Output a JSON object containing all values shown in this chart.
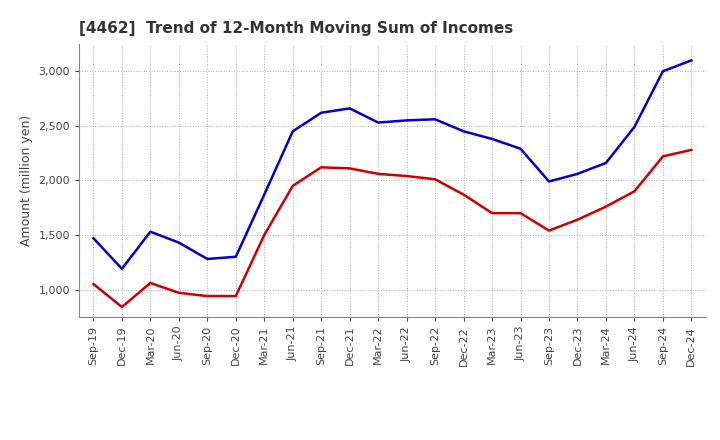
{
  "title": "[4462]  Trend of 12-Month Moving Sum of Incomes",
  "ylabel": "Amount (million yen)",
  "x_labels": [
    "Sep-19",
    "Dec-19",
    "Mar-20",
    "Jun-20",
    "Sep-20",
    "Dec-20",
    "Mar-21",
    "Jun-21",
    "Sep-21",
    "Dec-21",
    "Mar-22",
    "Jun-22",
    "Sep-22",
    "Dec-22",
    "Mar-23",
    "Jun-23",
    "Sep-23",
    "Dec-23",
    "Mar-24",
    "Jun-24",
    "Sep-24",
    "Dec-24"
  ],
  "ordinary_income": [
    1470,
    1190,
    1530,
    1430,
    1280,
    1300,
    1870,
    2450,
    2620,
    2660,
    2530,
    2550,
    2560,
    2450,
    2380,
    2290,
    1990,
    2060,
    2160,
    2490,
    3000,
    3100
  ],
  "net_income": [
    1050,
    840,
    1060,
    970,
    940,
    940,
    1500,
    1950,
    2120,
    2110,
    2060,
    2040,
    2010,
    1870,
    1700,
    1700,
    1540,
    1640,
    1760,
    1900,
    2220,
    2280
  ],
  "ordinary_color": "#0000cc",
  "net_color": "#cc0000",
  "ylim_min": 750,
  "ylim_max": 3250,
  "yticks": [
    1000,
    1500,
    2000,
    2500,
    3000
  ],
  "bg_color": "#ffffff",
  "plot_bg_color": "#ffffff",
  "grid_color": "#aaaaaa",
  "title_fontsize": 11,
  "axis_label_fontsize": 9,
  "tick_fontsize": 8,
  "legend_fontsize": 9,
  "line_width": 1.8
}
